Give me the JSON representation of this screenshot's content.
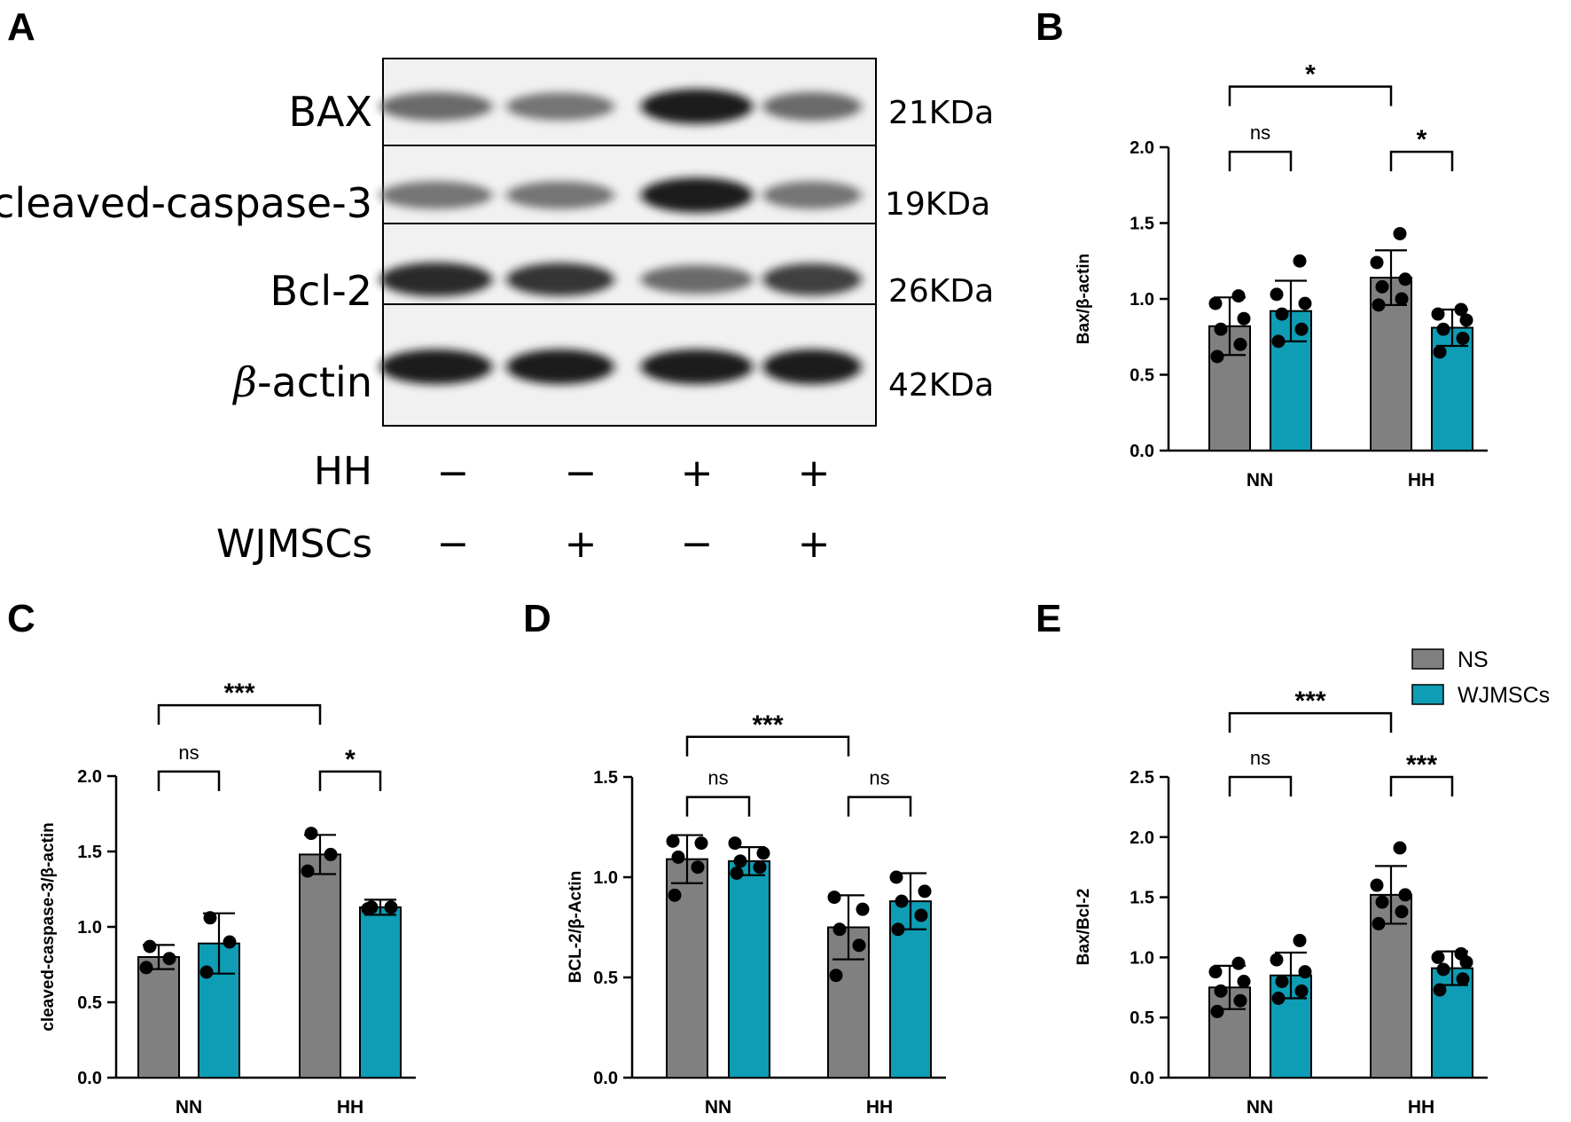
{
  "panels": {
    "a": "A",
    "b": "B",
    "c": "C",
    "d": "D",
    "e": "E"
  },
  "blot": {
    "rows": [
      {
        "label": "BAX",
        "kda": "21KDa",
        "intensity": [
          0.6,
          0.55,
          0.95,
          0.6
        ]
      },
      {
        "label": "cleaved-caspase-3",
        "kda": "19KDa",
        "intensity": [
          0.55,
          0.55,
          0.95,
          0.55
        ]
      },
      {
        "label": "Bcl-2",
        "kda": "26KDa",
        "intensity": [
          0.9,
          0.85,
          0.6,
          0.8
        ]
      },
      {
        "label_prefix": "β",
        "label": "-actin",
        "kda": "42KDa",
        "intensity": [
          0.95,
          0.95,
          0.95,
          0.95
        ]
      }
    ],
    "conditions": [
      {
        "label": "HH",
        "signs": [
          "−",
          "−",
          "+",
          "+"
        ]
      },
      {
        "label": "WJMSCs",
        "signs": [
          "−",
          "+",
          "−",
          "+"
        ]
      }
    ]
  },
  "legend": [
    {
      "name": "NS",
      "color": "#808080"
    },
    {
      "name": "WJMSCs",
      "color": "#0e9db5"
    }
  ],
  "chart_data": [
    {
      "id": "B",
      "type": "bar",
      "ylabel": "Bax/β-actin",
      "categories": [
        "NN",
        "HH"
      ],
      "ylim": [
        0,
        2.0
      ],
      "yticks": [
        0.0,
        0.5,
        1.0,
        1.5,
        2.0
      ],
      "series": [
        {
          "name": "NS",
          "color": "#808080",
          "values": [
            0.82,
            1.14
          ],
          "err": [
            0.19,
            0.18
          ],
          "points": [
            [
              0.62,
              0.7,
              0.8,
              0.87,
              0.97,
              1.02
            ],
            [
              0.96,
              1.0,
              1.08,
              1.13,
              1.24,
              1.43
            ]
          ]
        },
        {
          "name": "WJMSCs",
          "color": "#0e9db5",
          "values": [
            0.92,
            0.81
          ],
          "err": [
            0.2,
            0.12
          ],
          "points": [
            [
              0.72,
              0.8,
              0.9,
              0.97,
              1.03,
              1.25
            ],
            [
              0.65,
              0.74,
              0.8,
              0.86,
              0.9,
              0.93
            ]
          ]
        }
      ],
      "annotations": [
        {
          "from": [
            0,
            0
          ],
          "to": [
            1,
            0
          ],
          "level": 2.4,
          "text": "*"
        },
        {
          "from": [
            0,
            0
          ],
          "to": [
            0,
            1
          ],
          "level": 1.97,
          "text": "ns"
        },
        {
          "from": [
            1,
            0
          ],
          "to": [
            1,
            1
          ],
          "level": 1.97,
          "text": "*"
        }
      ]
    },
    {
      "id": "C",
      "type": "bar",
      "ylabel": "cleaved-caspase-3/β-actin",
      "categories": [
        "NN",
        "HH"
      ],
      "ylim": [
        0,
        2.0
      ],
      "yticks": [
        0.0,
        0.5,
        1.0,
        1.5,
        2.0
      ],
      "series": [
        {
          "name": "NS",
          "color": "#808080",
          "values": [
            0.8,
            1.48
          ],
          "err": [
            0.08,
            0.13
          ],
          "points": [
            [
              0.73,
              0.79,
              0.87
            ],
            [
              1.37,
              1.48,
              1.62
            ]
          ]
        },
        {
          "name": "WJMSCs",
          "color": "#0e9db5",
          "values": [
            0.89,
            1.13
          ],
          "err": [
            0.2,
            0.05
          ],
          "points": [
            [
              0.7,
              0.9,
              1.06
            ],
            [
              1.12,
              1.13,
              1.13
            ]
          ]
        }
      ],
      "annotations": [
        {
          "from": [
            0,
            0
          ],
          "to": [
            1,
            0
          ],
          "level": 2.47,
          "text": "***"
        },
        {
          "from": [
            0,
            0
          ],
          "to": [
            0,
            1
          ],
          "level": 2.03,
          "text": "ns"
        },
        {
          "from": [
            1,
            0
          ],
          "to": [
            1,
            1
          ],
          "level": 2.03,
          "text": "*"
        }
      ]
    },
    {
      "id": "D",
      "type": "bar",
      "ylabel": "BCL-2/β-Actin",
      "categories": [
        "NN",
        "HH"
      ],
      "ylim": [
        0,
        1.5
      ],
      "yticks": [
        0.0,
        0.5,
        1.0,
        1.5
      ],
      "series": [
        {
          "name": "NS",
          "color": "#808080",
          "values": [
            1.09,
            0.75
          ],
          "err": [
            0.12,
            0.16
          ],
          "points": [
            [
              0.91,
              1.05,
              1.1,
              1.17,
              1.18
            ],
            [
              0.51,
              0.66,
              0.74,
              0.84,
              0.9
            ]
          ]
        },
        {
          "name": "WJMSCs",
          "color": "#0e9db5",
          "values": [
            1.08,
            0.88
          ],
          "err": [
            0.07,
            0.14
          ],
          "points": [
            [
              1.02,
              1.05,
              1.08,
              1.12,
              1.17
            ],
            [
              0.74,
              0.81,
              0.88,
              0.93,
              1.0
            ]
          ]
        }
      ],
      "annotations": [
        {
          "from": [
            0,
            0
          ],
          "to": [
            1,
            0
          ],
          "level": 1.7,
          "text": "***"
        },
        {
          "from": [
            0,
            0
          ],
          "to": [
            0,
            1
          ],
          "level": 1.4,
          "text": "ns"
        },
        {
          "from": [
            1,
            0
          ],
          "to": [
            1,
            1
          ],
          "level": 1.4,
          "text": "ns"
        }
      ]
    },
    {
      "id": "E",
      "type": "bar",
      "ylabel": "Bax/Bcl-2",
      "categories": [
        "NN",
        "HH"
      ],
      "ylim": [
        0,
        2.5
      ],
      "yticks": [
        0.0,
        0.5,
        1.0,
        1.5,
        2.0,
        2.5
      ],
      "series": [
        {
          "name": "NS",
          "color": "#808080",
          "values": [
            0.75,
            1.52
          ],
          "err": [
            0.18,
            0.24
          ],
          "points": [
            [
              0.55,
              0.64,
              0.72,
              0.8,
              0.88,
              0.95
            ],
            [
              1.28,
              1.38,
              1.46,
              1.52,
              1.6,
              1.91
            ]
          ]
        },
        {
          "name": "WJMSCs",
          "color": "#0e9db5",
          "values": [
            0.85,
            0.91
          ],
          "err": [
            0.19,
            0.14
          ],
          "points": [
            [
              0.66,
              0.72,
              0.8,
              0.88,
              0.98,
              1.14
            ],
            [
              0.73,
              0.82,
              0.9,
              0.96,
              1.0,
              1.03
            ]
          ]
        }
      ],
      "annotations": [
        {
          "from": [
            0,
            0
          ],
          "to": [
            1,
            0
          ],
          "level": 3.03,
          "text": "***"
        },
        {
          "from": [
            0,
            0
          ],
          "to": [
            0,
            1
          ],
          "level": 2.5,
          "text": "ns"
        },
        {
          "from": [
            1,
            0
          ],
          "to": [
            1,
            1
          ],
          "level": 2.5,
          "text": "***"
        }
      ]
    }
  ]
}
